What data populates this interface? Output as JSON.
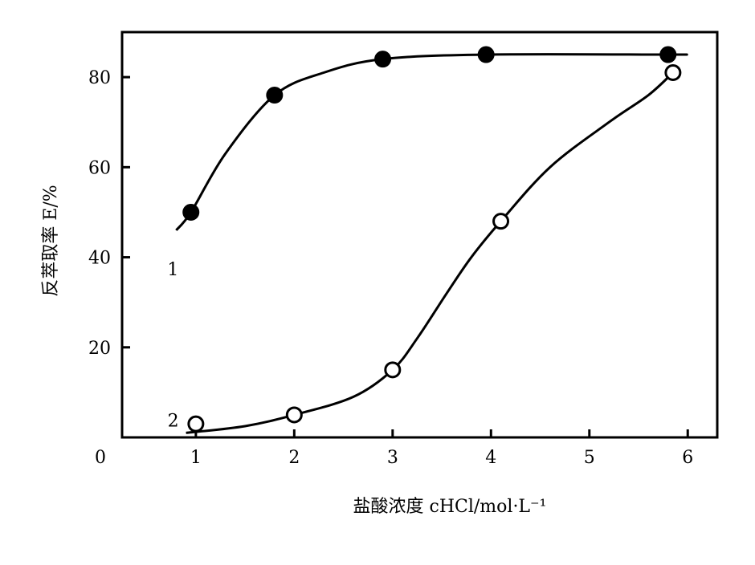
{
  "chart_data": {
    "type": "line",
    "xlabel": "盐酸浓度 cHCl/mol·L⁻¹",
    "ylabel": "反萃取率 E/%",
    "xlim": [
      0.25,
      6.3
    ],
    "ylim": [
      0,
      90
    ],
    "x_ticks": [
      1,
      2,
      3,
      4,
      5,
      6
    ],
    "x_tick_labels": [
      "1",
      "2",
      "3",
      "4",
      "5",
      "6"
    ],
    "y_ticks": [
      20,
      40,
      60,
      80
    ],
    "y_tick_labels": [
      "20",
      "40",
      "60",
      "80"
    ],
    "origin_label": "0",
    "grid": false,
    "series": [
      {
        "name": "1",
        "marker": "filled-circle",
        "color": "#000000",
        "points": [
          {
            "x": 0.95,
            "y": 50
          },
          {
            "x": 1.8,
            "y": 76
          },
          {
            "x": 2.9,
            "y": 84
          },
          {
            "x": 3.95,
            "y": 85
          },
          {
            "x": 5.8,
            "y": 85
          }
        ],
        "curve": [
          {
            "x": 0.8,
            "y": 46
          },
          {
            "x": 0.95,
            "y": 50
          },
          {
            "x": 1.3,
            "y": 63
          },
          {
            "x": 1.8,
            "y": 76
          },
          {
            "x": 2.3,
            "y": 81
          },
          {
            "x": 2.9,
            "y": 84
          },
          {
            "x": 3.95,
            "y": 85
          },
          {
            "x": 5.8,
            "y": 85
          },
          {
            "x": 5.95,
            "y": 85
          }
        ]
      },
      {
        "name": "2",
        "marker": "open-circle",
        "color": "#000000",
        "points": [
          {
            "x": 1.0,
            "y": 3
          },
          {
            "x": 2.0,
            "y": 5
          },
          {
            "x": 3.0,
            "y": 15
          },
          {
            "x": 4.1,
            "y": 48
          },
          {
            "x": 5.85,
            "y": 81
          }
        ],
        "curve": [
          {
            "x": 0.9,
            "y": 1
          },
          {
            "x": 1.5,
            "y": 2.5
          },
          {
            "x": 2.0,
            "y": 5
          },
          {
            "x": 2.6,
            "y": 9
          },
          {
            "x": 3.0,
            "y": 15
          },
          {
            "x": 3.25,
            "y": 22
          },
          {
            "x": 3.55,
            "y": 32
          },
          {
            "x": 3.8,
            "y": 40
          },
          {
            "x": 4.1,
            "y": 48
          },
          {
            "x": 4.6,
            "y": 60
          },
          {
            "x": 5.2,
            "y": 70
          },
          {
            "x": 5.6,
            "y": 76
          },
          {
            "x": 5.85,
            "y": 81
          }
        ]
      }
    ]
  }
}
